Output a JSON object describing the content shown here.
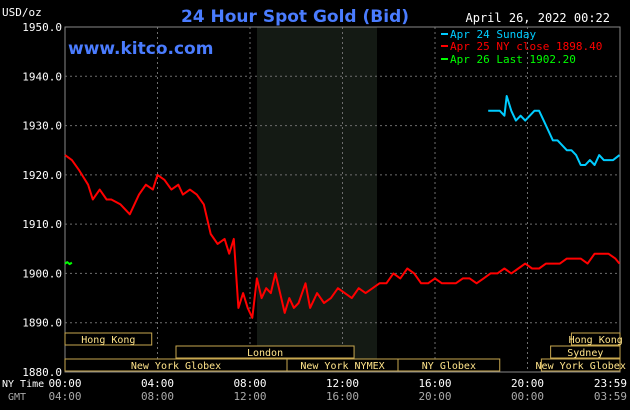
{
  "chart_data": {
    "type": "line",
    "title": "24 Hour Spot Gold (Bid)",
    "ylabel": "USD/oz",
    "site": "www.kitco.com",
    "timestamp": "April 26, 2022 00:22",
    "ylim": [
      1880,
      1950
    ],
    "yticks": [
      "1950.0",
      "1940.0",
      "1930.0",
      "1920.0",
      "1910.0",
      "1900.0",
      "1890.0",
      "1880.0"
    ],
    "x_row_ny_label": "NY Time",
    "x_row_gmt_label": "GMT",
    "xticks_ny": [
      "00:00",
      "04:00",
      "08:00",
      "12:00",
      "16:00",
      "20:00",
      "23:59"
    ],
    "xticks_gmt": [
      "04:00",
      "08:00",
      "12:00",
      "16:00",
      "20:00",
      "00:00",
      "03:59"
    ],
    "legend": [
      {
        "label": "Apr 24 Sunday",
        "color": "#00ccff"
      },
      {
        "label": "Apr 25 NY close 1898.40",
        "color": "#ff0000"
      },
      {
        "label": "Apr 26 Last 1902.20",
        "color": "#00ff00"
      }
    ],
    "series": [
      {
        "color": "#ff0000",
        "x": [
          0,
          0.3,
          0.6,
          1,
          1.2,
          1.5,
          1.8,
          2,
          2.4,
          2.8,
          3.2,
          3.5,
          3.8,
          4,
          4.3,
          4.6,
          4.9,
          5.1,
          5.4,
          5.7,
          6,
          6.3,
          6.6,
          6.9,
          7.1,
          7.3,
          7.5,
          7.7,
          7.9,
          8.1,
          8.3,
          8.5,
          8.7,
          8.9,
          9.1,
          9.3,
          9.5,
          9.7,
          9.9,
          10.1,
          10.4,
          10.6,
          10.9,
          11.2,
          11.5,
          11.8,
          12.1,
          12.4,
          12.7,
          13.0,
          13.3,
          13.6,
          13.9,
          14.2,
          14.5,
          14.8,
          15.1,
          15.4,
          15.7,
          16.0,
          16.3,
          16.6,
          16.9,
          17.2,
          17.5,
          17.8,
          18.1,
          18.4,
          18.7,
          19.0,
          19.3,
          19.6,
          19.9,
          20.2,
          20.5,
          20.8,
          21.1,
          21.4,
          21.7,
          22.0,
          22.3,
          22.6,
          22.9,
          23.2,
          23.5,
          23.8,
          23.98
        ],
        "values": [
          1924,
          1923,
          1921,
          1918,
          1915,
          1917,
          1915,
          1915,
          1914,
          1912,
          1916,
          1918,
          1917,
          1920,
          1919,
          1917,
          1918,
          1916,
          1917,
          1916,
          1914,
          1908,
          1906,
          1907,
          1904,
          1907,
          1893,
          1896,
          1893,
          1891,
          1899,
          1895,
          1897,
          1896,
          1900,
          1896,
          1892,
          1895,
          1893,
          1894,
          1898,
          1893,
          1896,
          1894,
          1895,
          1897,
          1896,
          1895,
          1897,
          1896,
          1897,
          1898,
          1898,
          1900,
          1899,
          1901,
          1900,
          1898,
          1898,
          1899,
          1898,
          1898,
          1898,
          1899,
          1899,
          1898,
          1899,
          1900,
          1900,
          1901,
          1900,
          1901,
          1902,
          1901,
          1901,
          1902,
          1902,
          1902,
          1903,
          1903,
          1903,
          1902,
          1904,
          1904,
          1904,
          1903,
          1902
        ]
      },
      {
        "color": "#00ccff",
        "x": [
          18.3,
          18.6,
          18.8,
          19.0,
          19.1,
          19.3,
          19.5,
          19.7,
          19.9,
          20.1,
          20.3,
          20.5,
          20.7,
          20.9,
          21.1,
          21.3,
          21.5,
          21.7,
          21.9,
          22.1,
          22.3,
          22.5,
          22.7,
          22.9,
          23.1,
          23.3,
          23.5,
          23.7,
          23.98
        ],
        "values": [
          1933,
          1933,
          1933,
          1932,
          1936,
          1933,
          1931,
          1932,
          1931,
          1932,
          1933,
          1933,
          1931,
          1929,
          1927,
          1927,
          1926,
          1925,
          1925,
          1924,
          1922,
          1922,
          1923,
          1922,
          1924,
          1923,
          1923,
          1923,
          1924
        ]
      },
      {
        "color": "#00ff00",
        "x": [
          0,
          0.1,
          0.2,
          0.3
        ],
        "values": [
          1902,
          1902.3,
          1901.9,
          1902.2
        ]
      }
    ],
    "sessions": [
      {
        "label": "Hong Kong",
        "start": 0,
        "end": 3.75,
        "row": 0
      },
      {
        "label": "Hong Kong",
        "start": 21.9,
        "end": 24,
        "row": 0
      },
      {
        "label": "London",
        "start": 4.8,
        "end": 12.5,
        "row": 1
      },
      {
        "label": "Sydney",
        "start": 21.0,
        "end": 24,
        "row": 1
      },
      {
        "label": "New York Globex",
        "start": 0,
        "end": 9.6,
        "row": 2
      },
      {
        "label": "New York NYMEX",
        "start": 9.6,
        "end": 14.4,
        "row": 2
      },
      {
        "label": "NY Globex",
        "start": 14.4,
        "end": 18.8,
        "row": 2
      },
      {
        "label": "New York Globex",
        "start": 20.6,
        "end": 24,
        "row": 2
      }
    ]
  }
}
